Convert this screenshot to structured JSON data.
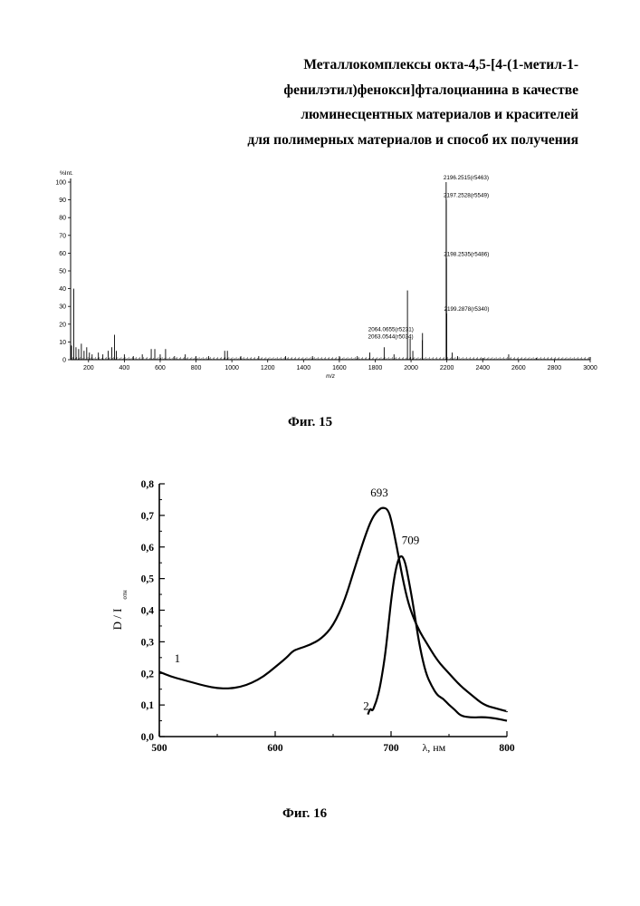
{
  "header": {
    "title_lines": [
      "Металлокомплексы окта-4,5-[4-(1-метил-1-",
      "фенилэтил)фенокси]фталоцианина в качестве",
      "люминесцентных материалов и красителей",
      "для полимерных материалов и способ их получения"
    ]
  },
  "chart_data": [
    {
      "type": "bar",
      "caption": "Фиг. 15",
      "title": "",
      "xlabel": "m/z",
      "ylabel": "%Int.",
      "xlim": [
        100,
        3000
      ],
      "ylim": [
        0,
        100
      ],
      "x_ticks": [
        "200",
        "400",
        "600",
        "800",
        "1000",
        "1200",
        "1400",
        "1600",
        "1800",
        "2000",
        "2200",
        "2400",
        "2600",
        "2800",
        "3000"
      ],
      "y_ticks": [
        "0",
        "10",
        "20",
        "30",
        "40",
        "50",
        "60",
        "70",
        "80",
        "90",
        "100"
      ],
      "x_tick_values": [
        200,
        400,
        600,
        800,
        1000,
        1200,
        1400,
        1600,
        1800,
        2000,
        2200,
        2400,
        2600,
        2800,
        3000
      ],
      "y_tick_values": [
        0,
        10,
        20,
        30,
        40,
        50,
        60,
        70,
        80,
        90,
        100
      ],
      "peaks": [
        {
          "x": 105,
          "y": 8
        },
        {
          "x": 118,
          "y": 40
        },
        {
          "x": 130,
          "y": 7
        },
        {
          "x": 145,
          "y": 6
        },
        {
          "x": 160,
          "y": 9
        },
        {
          "x": 175,
          "y": 5
        },
        {
          "x": 190,
          "y": 7
        },
        {
          "x": 205,
          "y": 4
        },
        {
          "x": 220,
          "y": 3
        },
        {
          "x": 255,
          "y": 4
        },
        {
          "x": 280,
          "y": 3
        },
        {
          "x": 310,
          "y": 5
        },
        {
          "x": 330,
          "y": 7
        },
        {
          "x": 345,
          "y": 14
        },
        {
          "x": 355,
          "y": 5
        },
        {
          "x": 400,
          "y": 3
        },
        {
          "x": 450,
          "y": 2
        },
        {
          "x": 500,
          "y": 3
        },
        {
          "x": 550,
          "y": 6
        },
        {
          "x": 570,
          "y": 6
        },
        {
          "x": 600,
          "y": 3
        },
        {
          "x": 630,
          "y": 6
        },
        {
          "x": 680,
          "y": 2
        },
        {
          "x": 740,
          "y": 3
        },
        {
          "x": 800,
          "y": 2
        },
        {
          "x": 870,
          "y": 2
        },
        {
          "x": 960,
          "y": 5
        },
        {
          "x": 975,
          "y": 5
        },
        {
          "x": 1050,
          "y": 2
        },
        {
          "x": 1150,
          "y": 2
        },
        {
          "x": 1300,
          "y": 2
        },
        {
          "x": 1450,
          "y": 2
        },
        {
          "x": 1600,
          "y": 2
        },
        {
          "x": 1700,
          "y": 2
        },
        {
          "x": 1770,
          "y": 4
        },
        {
          "x": 1850,
          "y": 7
        },
        {
          "x": 1905,
          "y": 3
        },
        {
          "x": 1980,
          "y": 39
        },
        {
          "x": 1995,
          "y": 12
        },
        {
          "x": 2010,
          "y": 5
        },
        {
          "x": 2063,
          "y": 11
        },
        {
          "x": 2064,
          "y": 15
        },
        {
          "x": 2196,
          "y": 100
        },
        {
          "x": 2197,
          "y": 90
        },
        {
          "x": 2198,
          "y": 57
        },
        {
          "x": 2199,
          "y": 26
        },
        {
          "x": 2230,
          "y": 4
        },
        {
          "x": 2260,
          "y": 2
        },
        {
          "x": 2400,
          "y": 1
        },
        {
          "x": 2545,
          "y": 3
        },
        {
          "x": 2700,
          "y": 1
        }
      ],
      "annotations": [
        {
          "text": "2196.2515(r5463)",
          "x": 2196,
          "y": 100
        },
        {
          "text": "2197.2528(r5549)",
          "x": 2197,
          "y": 90
        },
        {
          "text": "2198.2535(r5486)",
          "x": 2198,
          "y": 57
        },
        {
          "text": "2199.2878(r5340)",
          "x": 2199,
          "y": 26
        },
        {
          "text": "2064.0655(r5231)",
          "x": 2064,
          "y": 15
        },
        {
          "text": "2063.0544(r5034)",
          "x": 2063,
          "y": 11
        }
      ]
    },
    {
      "type": "line",
      "caption": "Фиг. 16",
      "title": "",
      "xlabel": "λ, нм",
      "ylabel": "D / I",
      "ylabel_subscript": "отн",
      "xlim": [
        500,
        800
      ],
      "ylim": [
        0,
        0.8
      ],
      "x_ticks": [
        "500",
        "600",
        "700",
        "800"
      ],
      "x_tick_values": [
        500,
        600,
        700,
        800
      ],
      "y_ticks": [
        "0,0",
        "0,1",
        "0,2",
        "0,3",
        "0,4",
        "0,5",
        "0,6",
        "0,7",
        "0,8"
      ],
      "y_tick_values": [
        0,
        0.1,
        0.2,
        0.3,
        0.4,
        0.5,
        0.6,
        0.7,
        0.8
      ],
      "series": [
        {
          "name": "1",
          "x": [
            500,
            510,
            520,
            530,
            540,
            550,
            560,
            570,
            580,
            590,
            600,
            610,
            615,
            620,
            630,
            640,
            650,
            660,
            670,
            680,
            685,
            690,
            693,
            697,
            700,
            705,
            710,
            715,
            720,
            725,
            730,
            740,
            750,
            760,
            770,
            780,
            790,
            800
          ],
          "y": [
            0.205,
            0.19,
            0.18,
            0.17,
            0.16,
            0.153,
            0.152,
            0.157,
            0.17,
            0.19,
            0.22,
            0.25,
            0.27,
            0.278,
            0.29,
            0.31,
            0.35,
            0.43,
            0.55,
            0.66,
            0.7,
            0.72,
            0.725,
            0.72,
            0.69,
            0.6,
            0.5,
            0.42,
            0.37,
            0.33,
            0.3,
            0.24,
            0.2,
            0.16,
            0.13,
            0.1,
            0.09,
            0.08
          ]
        },
        {
          "name": "2",
          "x": [
            680,
            682,
            684,
            686,
            688,
            690,
            692,
            695,
            698,
            700,
            703,
            706,
            709,
            712,
            715,
            718,
            721,
            725,
            730,
            735,
            740,
            745,
            750,
            755,
            760,
            770,
            780,
            790,
            800
          ],
          "y": [
            0.07,
            0.09,
            0.08,
            0.1,
            0.12,
            0.15,
            0.19,
            0.26,
            0.36,
            0.43,
            0.51,
            0.56,
            0.575,
            0.555,
            0.5,
            0.44,
            0.37,
            0.28,
            0.2,
            0.16,
            0.13,
            0.12,
            0.1,
            0.085,
            0.065,
            0.06,
            0.062,
            0.058,
            0.05
          ]
        }
      ],
      "annotations": [
        {
          "text": "693",
          "x": 693,
          "y": 0.725
        },
        {
          "text": "709",
          "x": 709,
          "y": 0.575
        }
      ]
    }
  ]
}
